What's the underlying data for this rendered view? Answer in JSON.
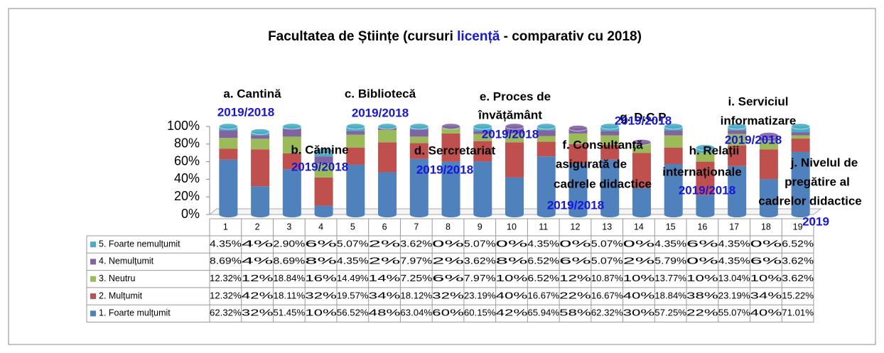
{
  "chart_data": {
    "type": "stacked_bar",
    "title": {
      "before": "Facultatea de Științe (cursuri ",
      "highlight": "licență",
      "after": " - comparativ cu 2018)"
    },
    "categories": [
      "1",
      "2",
      "3",
      "4",
      "5",
      "6",
      "7",
      "8",
      "9",
      "10",
      "11",
      "12",
      "13",
      "14",
      "15",
      "16",
      "17",
      "18",
      "19"
    ],
    "series": [
      {
        "name": "1. Foarte mulțumit",
        "color": "#4f81bd",
        "values": [
          62.32,
          32,
          51.45,
          10,
          56.52,
          48,
          63.04,
          60,
          60.15,
          42,
          65.94,
          58,
          62.32,
          30,
          57.25,
          22,
          55.07,
          40,
          71.01
        ],
        "value_labels": [
          "62.32%",
          "32%",
          "51.45%",
          "10%",
          "56.52%",
          "48%",
          "63.04%",
          "60%",
          "60.15%",
          "42%",
          "65.94%",
          "58%",
          "62.32%",
          "30%",
          "57.25%",
          "22%",
          "55.07%",
          "40%",
          "71.01%"
        ]
      },
      {
        "name": "2. Mulțumit",
        "color": "#c0504d",
        "values": [
          12.32,
          42,
          18.11,
          32,
          19.57,
          34,
          18.12,
          32,
          23.19,
          40,
          16.67,
          22,
          16.67,
          40,
          18.84,
          38,
          23.19,
          34,
          15.22
        ],
        "value_labels": [
          "12.32%",
          "42%",
          "18.11%",
          "32%",
          "19.57%",
          "34%",
          "18.12%",
          "32%",
          "23.19%",
          "40%",
          "16.67%",
          "22%",
          "16.67%",
          "40%",
          "18.84%",
          "38%",
          "23.19%",
          "34%",
          "15.22%"
        ]
      },
      {
        "name": "3. Neutru",
        "color": "#9bbb59",
        "values": [
          12.32,
          12,
          18.84,
          16,
          14.49,
          14,
          7.25,
          6,
          7.97,
          10,
          6.52,
          12,
          10.87,
          10,
          13.77,
          10,
          13.04,
          10,
          3.62
        ],
        "value_labels": [
          "12.32%",
          "12%",
          "18.84%",
          "16%",
          "14.49%",
          "14%",
          "7.25%",
          "6%",
          "7.97%",
          "10%",
          "6.52%",
          "12%",
          "10.87%",
          "10%",
          "13.77%",
          "10%",
          "13.04%",
          "10%",
          "3.62%"
        ]
      },
      {
        "name": "4. Nemulțumit",
        "color": "#8064a2",
        "values": [
          8.69,
          4,
          8.69,
          8,
          4.35,
          2,
          7.97,
          2,
          3.62,
          8,
          6.52,
          6,
          5.07,
          2,
          5.79,
          0,
          4.35,
          6,
          3.62
        ],
        "value_labels": [
          "8.69%",
          "4%",
          "8.69%",
          "8%",
          "4.35%",
          "2%",
          "7.97%",
          "2%",
          "3.62%",
          "8%",
          "6.52%",
          "6%",
          "5.07%",
          "2%",
          "5.79%",
          "0%",
          "4.35%",
          "6%",
          "3.62%"
        ]
      },
      {
        "name": "5. Foarte nemulțumit",
        "color": "#4bacc6",
        "values": [
          4.35,
          4,
          2.9,
          6,
          5.07,
          2,
          3.62,
          0,
          5.07,
          0,
          4.35,
          0,
          5.07,
          0,
          4.35,
          6,
          4.35,
          0,
          6.52
        ],
        "value_labels": [
          "4.35%",
          "4%",
          "2.90%",
          "6%",
          "5.07%",
          "2%",
          "3.62%",
          "0%",
          "5.07%",
          "0%",
          "4.35%",
          "0%",
          "5.07%",
          "0%",
          "4.35%",
          "6%",
          "4.35%",
          "0%",
          "6.52%"
        ]
      }
    ],
    "ylim": [
      0,
      100
    ],
    "yticks": [
      {
        "value": 0,
        "label": "0%"
      },
      {
        "value": 20,
        "label": "20%"
      },
      {
        "value": 40,
        "label": "40%"
      },
      {
        "value": 60,
        "label": "60%"
      },
      {
        "value": 80,
        "label": "80%"
      },
      {
        "value": 100,
        "label": "100%"
      }
    ],
    "annotations": [
      {
        "lines": [
          "a. Cantină"
        ],
        "period": "2019/2018"
      },
      {
        "lines": [
          "b. Cămine"
        ],
        "period": "2019/2018"
      },
      {
        "lines": [
          "c. Bibliotecă"
        ],
        "period": "2019/2018"
      },
      {
        "lines": [
          "d. Sercretariat"
        ],
        "period": "2019/2018"
      },
      {
        "lines": [
          "e. Proces de",
          "învățământ"
        ],
        "period": "2019/2018"
      },
      {
        "lines": [
          "f. Consultanță",
          "asigurată de",
          "cadrele didactice"
        ],
        "period": "2019/2018"
      },
      {
        "lines": [
          "g. D.C.P"
        ],
        "period": "2019/2018"
      },
      {
        "lines": [
          "h. Relații",
          "internaționale"
        ],
        "period": "2019/2018"
      },
      {
        "lines": [
          "i. Serviciul",
          "informatizare"
        ],
        "period": "2019/2018"
      },
      {
        "lines": [
          "j. Nivelul de",
          "pregătire al",
          "cadrelor didactice"
        ],
        "period": "2019"
      }
    ]
  }
}
